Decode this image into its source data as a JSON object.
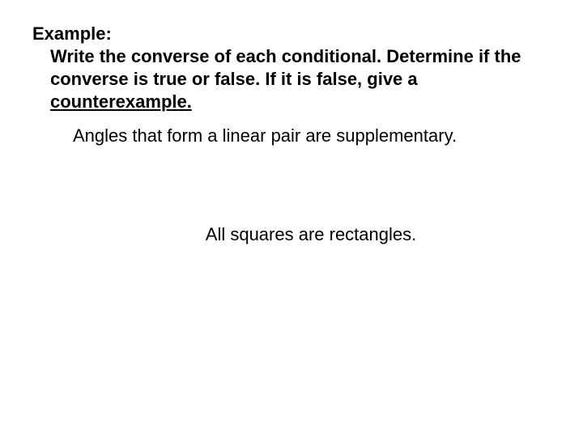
{
  "heading": {
    "label": "Example:",
    "instruction_part1": "Write the converse of each conditional.  Determine if the converse is true or false.  If it is false, give a ",
    "instruction_part2_underlined": "counterexample."
  },
  "item1": "Angles that form a linear pair are supplementary.",
  "item2": "All squares are rectangles.",
  "colors": {
    "background": "#ffffff",
    "text": "#000000"
  },
  "typography": {
    "font_family": "Arial",
    "heading_fontsize": 22,
    "heading_weight": 700,
    "body_fontsize": 22,
    "body_weight": 400
  }
}
